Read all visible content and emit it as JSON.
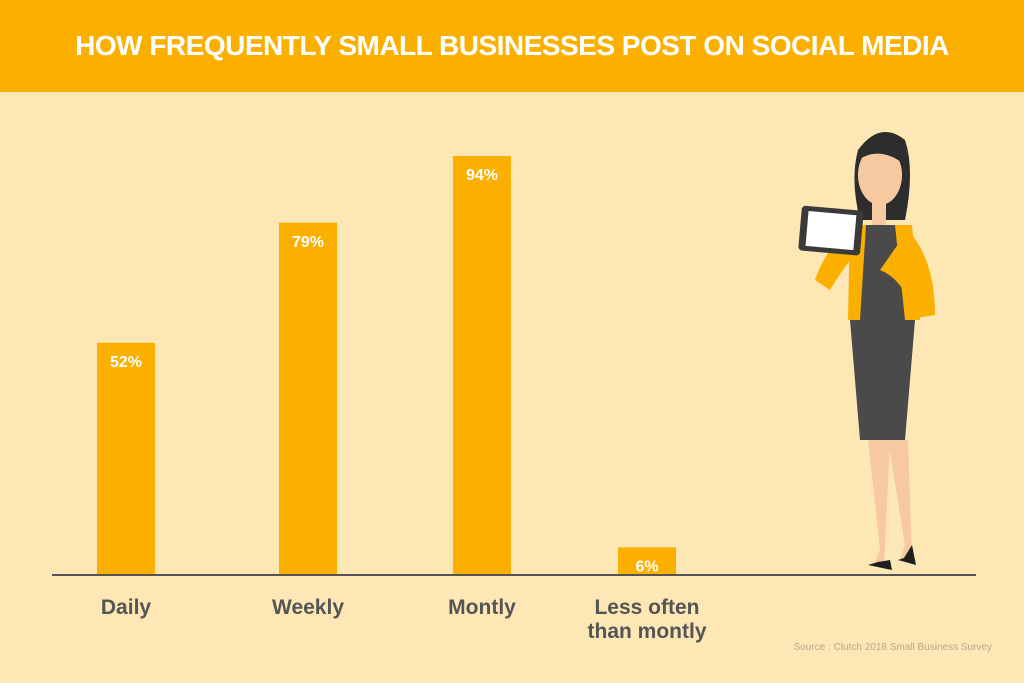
{
  "chart_data": {
    "type": "bar",
    "title": "HOW FREQUENTLY SMALL BUSINESSES POST ON SOCIAL MEDIA",
    "categories": [
      "Daily",
      "Weekly",
      "Montly",
      "Less often than montly"
    ],
    "values": [
      52,
      79,
      94,
      6
    ],
    "value_labels": [
      "52%",
      "79%",
      "94%",
      "6%"
    ],
    "color": "#fbb000",
    "source": "Source : Clutch 2018 Small Business Survey"
  }
}
